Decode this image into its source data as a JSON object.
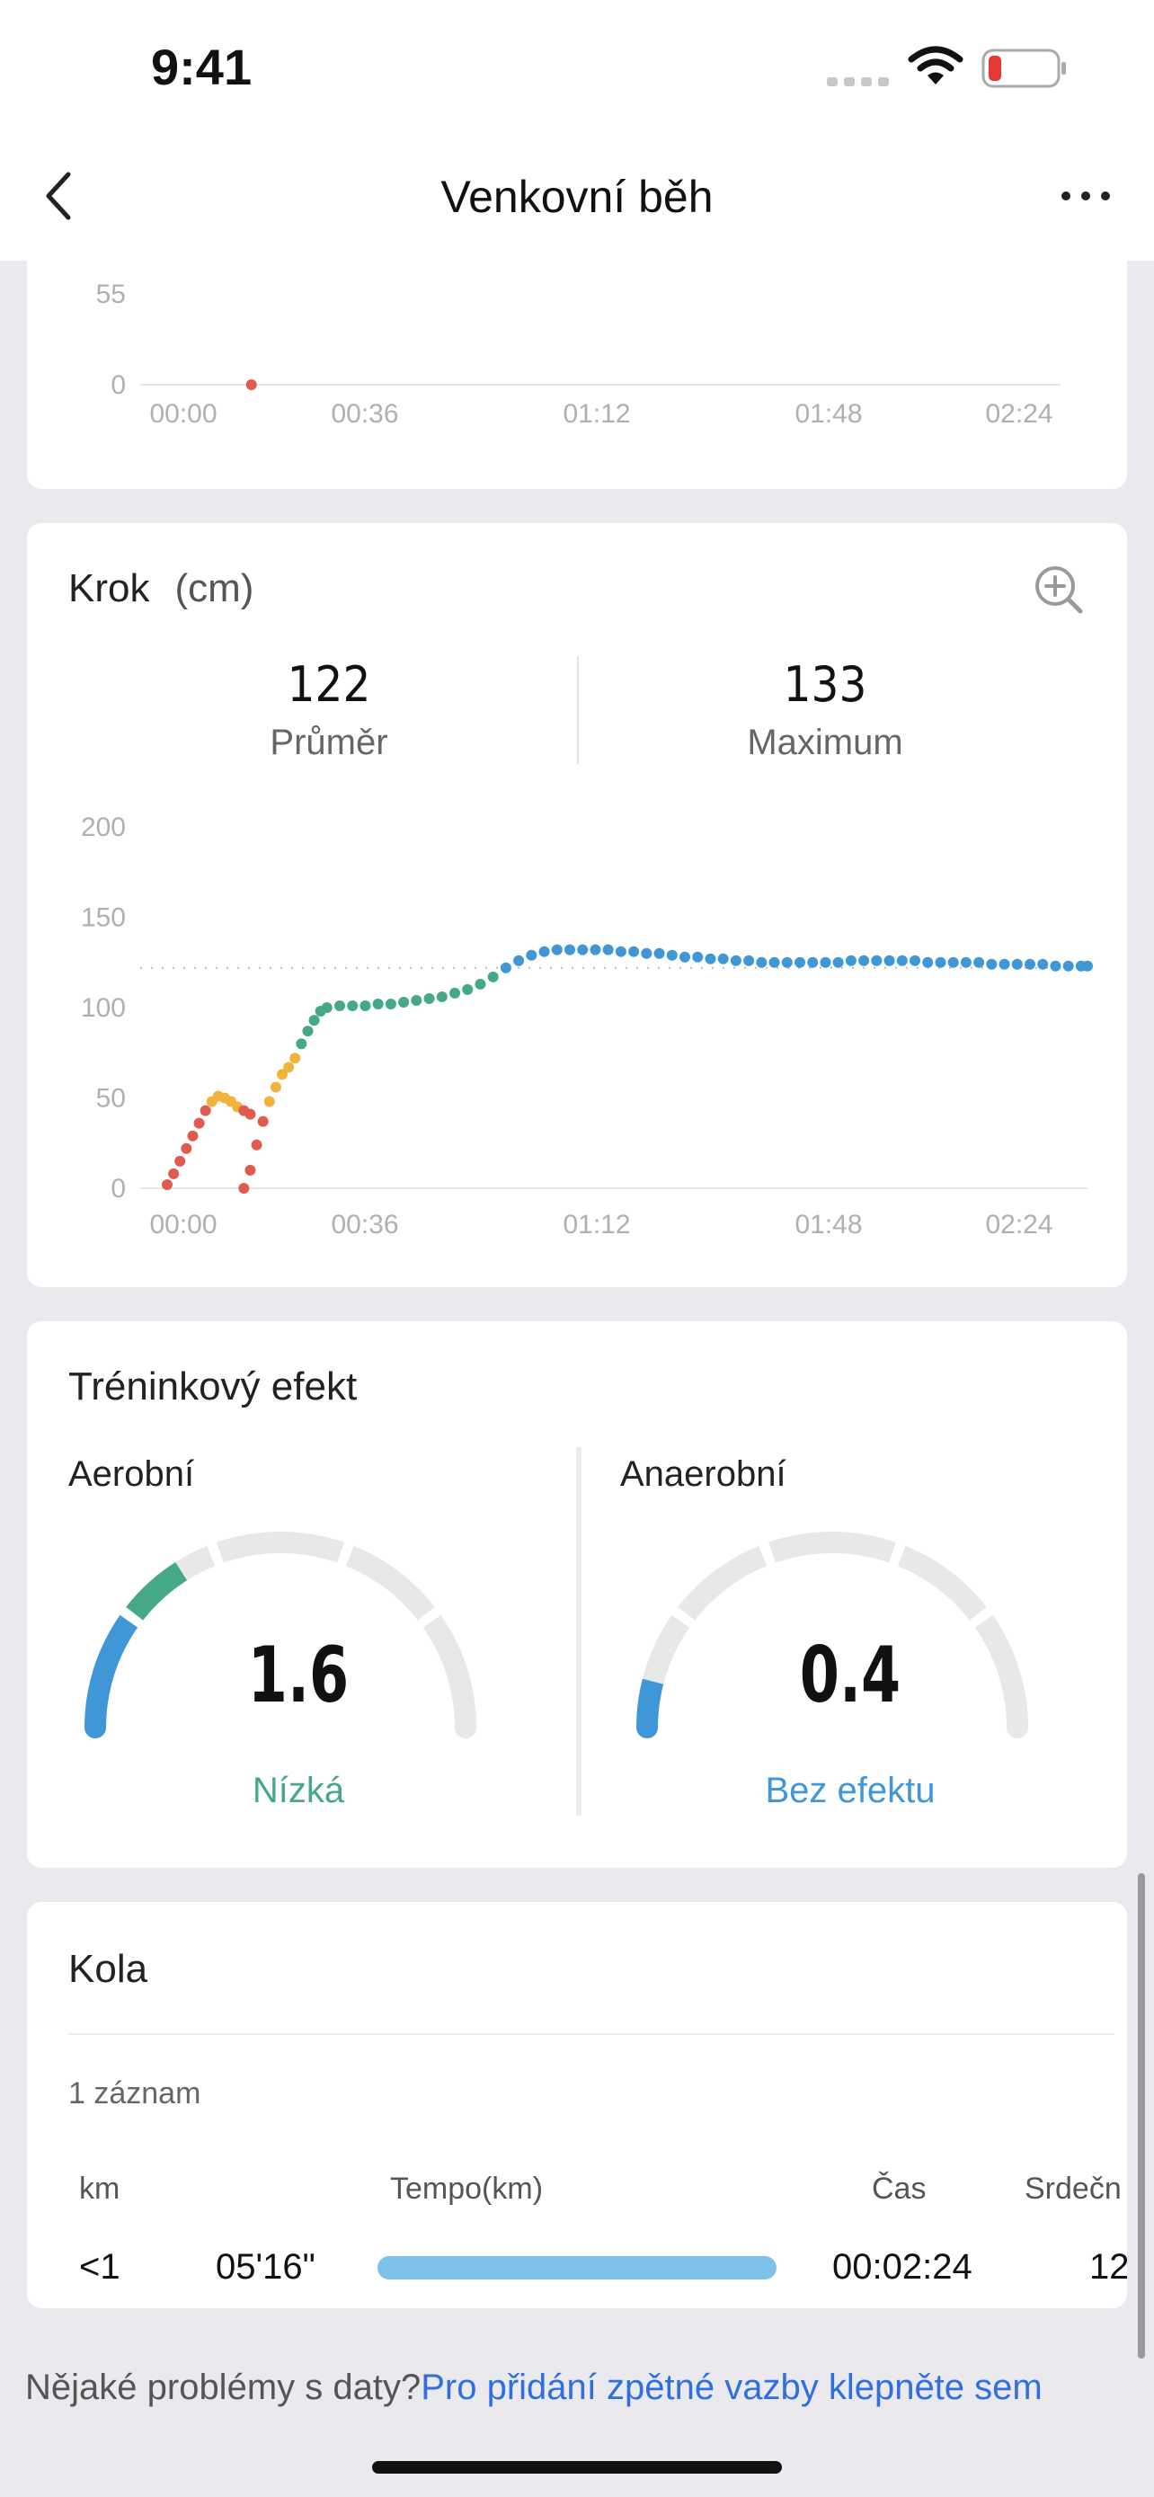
{
  "status_bar": {
    "time": "9:41"
  },
  "nav": {
    "title": "Venkovní běh"
  },
  "prev_chart": {
    "chart_data": {
      "type": "scatter",
      "y_ticks": [
        "55",
        "0"
      ],
      "x_ticks": [
        "00:00",
        "00:36",
        "01:12",
        "01:48",
        "02:24"
      ],
      "points": [
        {
          "x": 0.08,
          "y": 0
        }
      ],
      "point_color": "#e05a4f"
    }
  },
  "stride": {
    "title": "Krok",
    "unit": "(cm)",
    "avg_value": "122",
    "avg_label": "Průměr",
    "max_value": "133",
    "max_label": "Maximum",
    "chart_data": {
      "type": "scatter",
      "y_ticks": [
        "200",
        "150",
        "100",
        "50",
        "0"
      ],
      "ylim": [
        0,
        200
      ],
      "x_ticks": [
        "00:00",
        "00:36",
        "01:12",
        "01:48",
        "02:24"
      ],
      "xlim": [
        0,
        144
      ],
      "avg_line": 122,
      "colors": {
        "low": "#e05a4f",
        "mid": "#f2b33d",
        "ok": "#45a987",
        "high": "#3f97d8"
      },
      "points": [
        [
          0,
          2
        ],
        [
          1,
          8
        ],
        [
          2,
          15
        ],
        [
          3,
          22
        ],
        [
          4,
          29
        ],
        [
          5,
          36
        ],
        [
          6,
          43
        ],
        [
          7,
          48
        ],
        [
          8,
          51
        ],
        [
          9,
          50
        ],
        [
          10,
          48
        ],
        [
          11,
          45
        ],
        [
          12,
          43
        ],
        [
          13,
          41
        ],
        [
          12,
          0
        ],
        [
          13,
          10
        ],
        [
          14,
          24
        ],
        [
          15,
          37
        ],
        [
          16,
          48
        ],
        [
          17,
          56
        ],
        [
          18,
          63
        ],
        [
          19,
          67
        ],
        [
          20,
          72
        ],
        [
          21,
          80
        ],
        [
          22,
          87
        ],
        [
          23,
          93
        ],
        [
          24,
          98
        ],
        [
          25,
          100
        ],
        [
          27,
          101
        ],
        [
          29,
          101
        ],
        [
          31,
          101
        ],
        [
          33,
          102
        ],
        [
          35,
          102
        ],
        [
          37,
          103
        ],
        [
          39,
          104
        ],
        [
          41,
          105
        ],
        [
          43,
          106
        ],
        [
          45,
          108
        ],
        [
          47,
          110
        ],
        [
          49,
          113
        ],
        [
          51,
          117
        ],
        [
          53,
          122
        ],
        [
          55,
          126
        ],
        [
          57,
          129
        ],
        [
          59,
          131
        ],
        [
          61,
          132
        ],
        [
          63,
          132
        ],
        [
          65,
          132
        ],
        [
          67,
          132
        ],
        [
          69,
          132
        ],
        [
          71,
          131
        ],
        [
          73,
          131
        ],
        [
          75,
          130
        ],
        [
          77,
          130
        ],
        [
          79,
          129
        ],
        [
          81,
          128
        ],
        [
          83,
          128
        ],
        [
          85,
          127
        ],
        [
          87,
          127
        ],
        [
          89,
          126
        ],
        [
          91,
          126
        ],
        [
          93,
          125
        ],
        [
          95,
          125
        ],
        [
          97,
          125
        ],
        [
          99,
          125
        ],
        [
          101,
          125
        ],
        [
          103,
          125
        ],
        [
          105,
          125
        ],
        [
          107,
          126
        ],
        [
          109,
          126
        ],
        [
          111,
          126
        ],
        [
          113,
          126
        ],
        [
          115,
          126
        ],
        [
          117,
          126
        ],
        [
          119,
          125
        ],
        [
          121,
          125
        ],
        [
          123,
          125
        ],
        [
          125,
          125
        ],
        [
          127,
          125
        ],
        [
          129,
          124
        ],
        [
          131,
          124
        ],
        [
          133,
          124
        ],
        [
          135,
          124
        ],
        [
          137,
          124
        ],
        [
          139,
          123
        ],
        [
          141,
          123
        ],
        [
          143,
          123
        ],
        [
          144,
          123
        ]
      ]
    }
  },
  "training": {
    "title": "Tréninkový efekt",
    "aerobic": {
      "label": "Aerobní",
      "value": "1.6",
      "status": "Nízká",
      "status_color": "#45a987",
      "max": 5
    },
    "anaerobic": {
      "label": "Anaerobní",
      "value": "0.4",
      "status": "Bez efektu",
      "status_color": "#3f97d8",
      "max": 5
    }
  },
  "laps": {
    "title": "Kola",
    "subtitle": "1 záznam",
    "headers": {
      "km": "km",
      "pace": "Tempo(km)",
      "time": "Čas",
      "hr": "Srdečn"
    },
    "rows": [
      {
        "km": "<1",
        "pace": "05'16\"",
        "pace_fraction": 1.0,
        "time": "00:02:24",
        "hr": "12"
      }
    ]
  },
  "footer": {
    "question": "Nějaké problémy s daty?",
    "link": "Pro přidání zpětné vazby klepněte sem"
  }
}
